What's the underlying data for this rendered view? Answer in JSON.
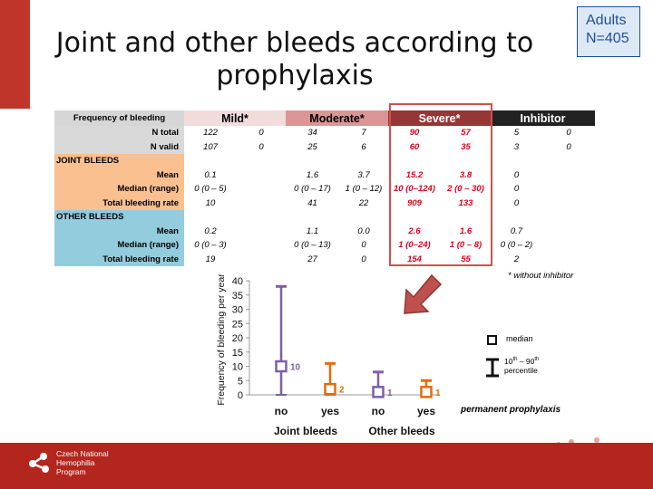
{
  "title": "Joint and other bleeds according to prophylaxis",
  "adults_box": {
    "line1": "Adults",
    "line2": "N=405"
  },
  "table": {
    "header_label": "Frequency of bleeding",
    "groups": [
      "Mild*",
      "Moderate*",
      "Severe*",
      "Inhibitor"
    ],
    "group_colors": {
      "mild": "#f2dcdb",
      "moderate": "#d99694",
      "severe": "#953735",
      "inhibitor": "#222222"
    },
    "rows": {
      "n_total": {
        "label": "N total",
        "values": [
          "122",
          "0",
          "34",
          "7",
          "90",
          "57",
          "5",
          "0"
        ]
      },
      "n_valid": {
        "label": "N valid",
        "values": [
          "107",
          "0",
          "25",
          "6",
          "60",
          "35",
          "3",
          "0"
        ]
      },
      "joint_section": "JOINT BLEEDS",
      "joint_mean": {
        "label": "Mean",
        "values": [
          "0.1",
          "",
          "1.6",
          "3.7",
          "15.2",
          "3.8",
          "0",
          ""
        ]
      },
      "joint_median": {
        "label": "Median (range)",
        "values": [
          "0 (0 – 5)",
          "",
          "0 (0 – 17)",
          "1 (0 – 12)",
          "10 (0–124)",
          "2 (0 – 30)",
          "0",
          ""
        ]
      },
      "joint_total": {
        "label": "Total bleeding rate",
        "values": [
          "10",
          "",
          "41",
          "22",
          "909",
          "133",
          "0",
          ""
        ]
      },
      "other_section": "OTHER BLEEDS",
      "other_mean": {
        "label": "Mean",
        "values": [
          "0.2",
          "",
          "1.1",
          "0.0",
          "2.6",
          "1.6",
          "0.7",
          ""
        ]
      },
      "other_median": {
        "label": "Median (range)",
        "values": [
          "0 (0 – 3)",
          "",
          "0 (0 – 13)",
          "0",
          "1 (0–24)",
          "1 (0 – 8)",
          "0 (0 – 2)",
          ""
        ]
      },
      "other_total": {
        "label": "Total bleeding rate",
        "values": [
          "19",
          "",
          "27",
          "0",
          "154",
          "55",
          "2",
          ""
        ]
      }
    },
    "footnote": "* without inhibitor"
  },
  "chart_data": {
    "type": "box-range",
    "ylabel": "Frequency of bleeding per year",
    "ylim": [
      0,
      40
    ],
    "yticks": [
      "0",
      "5",
      "10",
      "15",
      "20",
      "25",
      "30",
      "35",
      "40"
    ],
    "categories": [
      "no",
      "yes",
      "no",
      "yes"
    ],
    "groups": [
      "Joint bleeds",
      "Other bleeds"
    ],
    "series": [
      {
        "category": "no",
        "group": "Joint bleeds",
        "median": 10,
        "low": 0,
        "high": 38,
        "label": "10",
        "color": "#7f5fa6"
      },
      {
        "category": "yes",
        "group": "Joint bleeds",
        "median": 2,
        "low": 0,
        "high": 11,
        "label": "2",
        "color": "#e46c0a"
      },
      {
        "category": "no",
        "group": "Other bleeds",
        "median": 1,
        "low": 0,
        "high": 8,
        "label": "1",
        "color": "#7f5fa6"
      },
      {
        "category": "yes",
        "group": "Other bleeds",
        "median": 1,
        "low": 0,
        "high": 5,
        "label": "1",
        "color": "#e46c0a"
      }
    ],
    "legend": {
      "median": "median",
      "range_line1": "10",
      "range_sup1": "th",
      "range_mid": " – 90",
      "range_sup2": "th",
      "range_line2": "percentile",
      "caption": "permanent prophylaxis"
    }
  },
  "footer": {
    "logo_line1": "Czech National",
    "logo_line2": "Hemophilia",
    "logo_line3": "Program",
    "color": "#b3261e"
  }
}
